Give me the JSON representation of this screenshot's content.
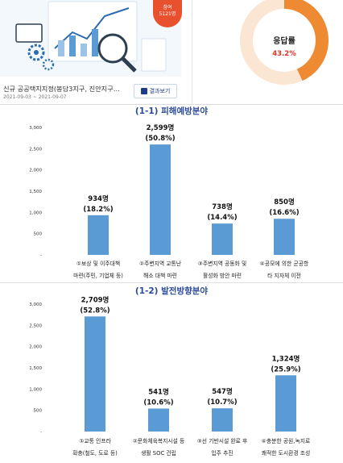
{
  "survey": {
    "badge_line1": "참여",
    "badge_line2": "5121명",
    "title": "신규 공공택지지정(봉담3지구, 진안지구…",
    "date": "2021-09-03 ~ 2021-09-07",
    "result_button": "결과보기",
    "response_rate_label": "응답률",
    "response_rate_value": "43.2%",
    "response_rate": 43.2
  },
  "colors": {
    "bar": "#5b9bd5",
    "donut_fill": "#ee8a32",
    "donut_track": "#fbe5d3",
    "rate_text": "#d8352a",
    "title": "#2a4a9c"
  },
  "chart_data": [
    {
      "type": "bar",
      "title": "(1-1) 피해예방분야",
      "categories": [
        [
          "①보상 및 이주대책",
          "마련(주민, 기업체 등)"
        ],
        [
          "②주변지역 교통난",
          "해소 대책 마련"
        ],
        [
          "③주변지역 공동화 및",
          "활성화 방안 마련"
        ],
        [
          "④공모에 의한 군공항",
          "타 지자체 이전"
        ]
      ],
      "values": [
        934,
        2599,
        738,
        850
      ],
      "value_labels": [
        "934명",
        "2,599명",
        "738명",
        "850명"
      ],
      "percent_labels": [
        "(18.2%)",
        "(50.8%)",
        "(14.4%)",
        "(16.6%)"
      ],
      "yticks": [
        "3,000",
        "2,500",
        "2,000",
        "1,500",
        "1,000",
        "500",
        "-"
      ],
      "ylim": [
        0,
        3000
      ],
      "xlabel": "",
      "ylabel": "",
      "grid": false
    },
    {
      "type": "bar",
      "title": "(1-2) 발전방향분야",
      "categories": [
        [
          "①교통 인프라",
          "확충(철도, 도로 등)"
        ],
        [
          "②문화체육복지시설 등",
          "생활 SOC 건립"
        ],
        [
          "③선 기반시설 완료 후",
          "입주 추진"
        ],
        [
          "④충분한 공원,녹지로",
          "쾌적한 도시환경 조성"
        ]
      ],
      "values": [
        2709,
        541,
        547,
        1324
      ],
      "value_labels": [
        "2,709명",
        "541명",
        "547명",
        "1,324명"
      ],
      "percent_labels": [
        "(52.8%)",
        "(10.6%)",
        "(10.7%)",
        "(25.9%)"
      ],
      "yticks": [
        "3,000",
        "2,500",
        "2,000",
        "1,500",
        "1,000",
        "500",
        "-"
      ],
      "ylim": [
        0,
        3000
      ],
      "xlabel": "",
      "ylabel": "",
      "grid": false
    }
  ]
}
